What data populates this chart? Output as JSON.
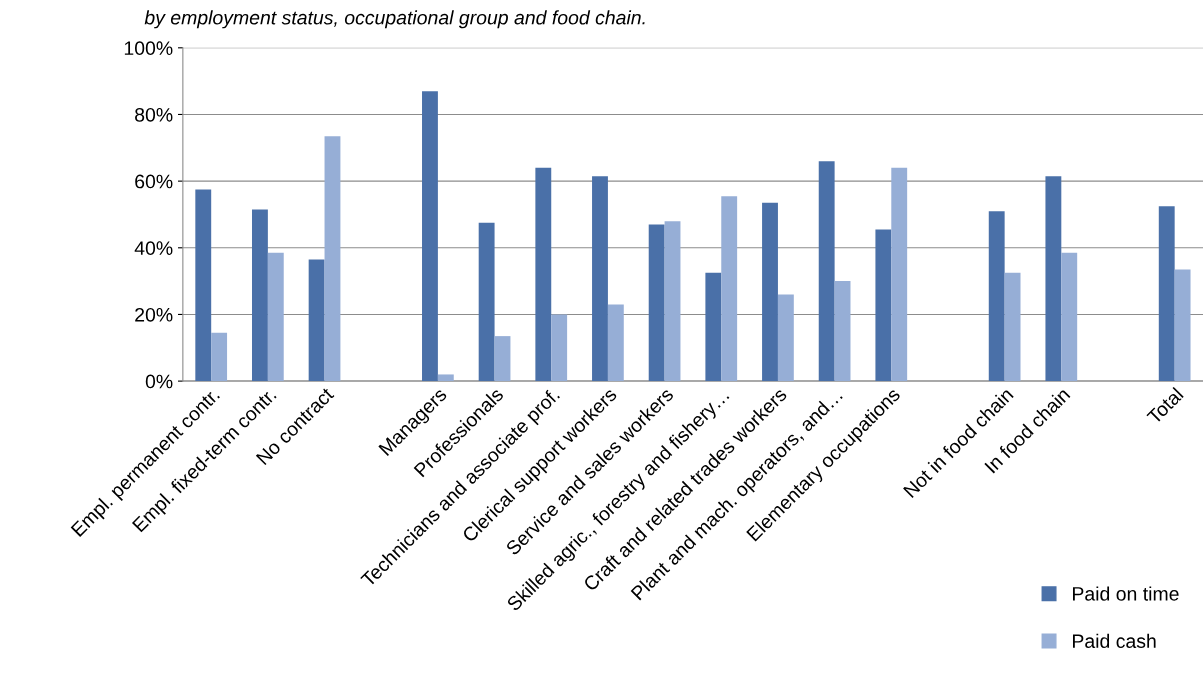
{
  "chart_data": {
    "type": "bar",
    "title": "by employment status, occupational group and food chain.",
    "categories": [
      "Empl. permanent contr.",
      "Empl. fixed-term contr.",
      "No contract",
      null,
      "Managers",
      "Professionals",
      "Technicians and associate prof.",
      "Clerical support workers",
      "Service and sales workers",
      "Skilled agric., forestry and fishery…",
      "Craft and related trades workers",
      "Plant and mach. operators, and…",
      "Elementary occupations",
      null,
      "Not in food chain",
      "In food chain",
      null,
      "Total"
    ],
    "series": [
      {
        "name": "Paid on time",
        "color": "#4a70a8",
        "values": [
          57.5,
          51.5,
          36.5,
          null,
          87,
          47.5,
          64,
          61.5,
          47,
          32.5,
          53.5,
          66,
          45.5,
          null,
          51,
          61.5,
          null,
          52.5
        ]
      },
      {
        "name": "Paid cash",
        "color": "#96aed6",
        "values": [
          14.5,
          38.5,
          73.5,
          null,
          2,
          13.5,
          20,
          23,
          48,
          55.5,
          26,
          30,
          64,
          null,
          32.5,
          38.5,
          null,
          33.5
        ]
      }
    ],
    "ylim": [
      0,
      100
    ],
    "yticks": [
      {
        "value": 0,
        "label": "0%"
      },
      {
        "value": 20,
        "label": "20%"
      },
      {
        "value": 40,
        "label": "40%"
      },
      {
        "value": 60,
        "label": "60%"
      },
      {
        "value": 80,
        "label": "80%"
      },
      {
        "value": 100,
        "label": "100%"
      }
    ],
    "grid": "y",
    "legend": "bottom right"
  }
}
